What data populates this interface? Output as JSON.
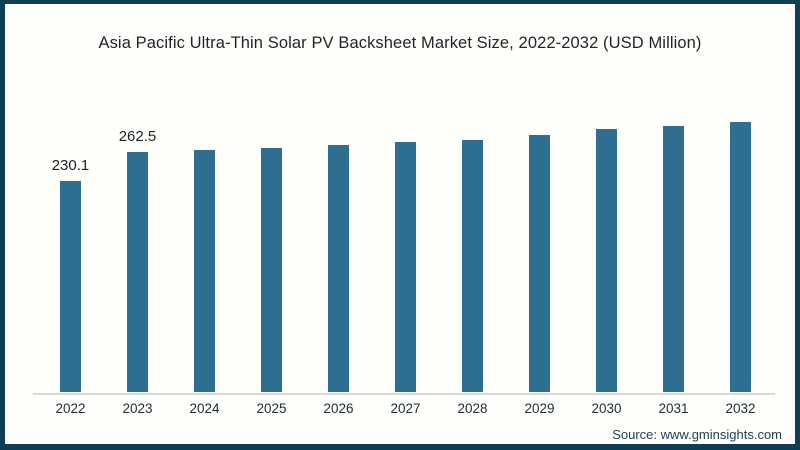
{
  "header": {
    "title": "Asia Pacific Ultra-Thin Solar PV Backsheet Market Size, 2022-2032 (USD Million)"
  },
  "chart_data": {
    "type": "bar",
    "title": "Asia Pacific Ultra-Thin Solar PV Backsheet Market Size, 2022-2032 (USD Million)",
    "categories": [
      "2022",
      "2023",
      "2024",
      "2025",
      "2026",
      "2027",
      "2028",
      "2029",
      "2030",
      "2031",
      "2032"
    ],
    "values": [
      230.1,
      262.5,
      264,
      266,
      270,
      273,
      275,
      280,
      287,
      290,
      295
    ],
    "data_labels": {
      "2022": "230.1",
      "2023": "262.5"
    },
    "labeled_categories": [
      "2022",
      "2023"
    ],
    "xlabel": "",
    "ylabel": "",
    "ylim": [
      0,
      300
    ],
    "grid": "off",
    "legend": "none",
    "value_axis_visible": false
  },
  "footer": {
    "source": "Source: www.gminsights.com"
  },
  "colors": {
    "bar_fill": "#2d6e91",
    "frame_border": "#0e3d55",
    "axis_line": "#d9d9d9",
    "title_text": "#21262b",
    "value_label_text": "#1b222b",
    "tick_text": "#202e3a",
    "source_text": "#244156",
    "background": "#fefefb"
  }
}
